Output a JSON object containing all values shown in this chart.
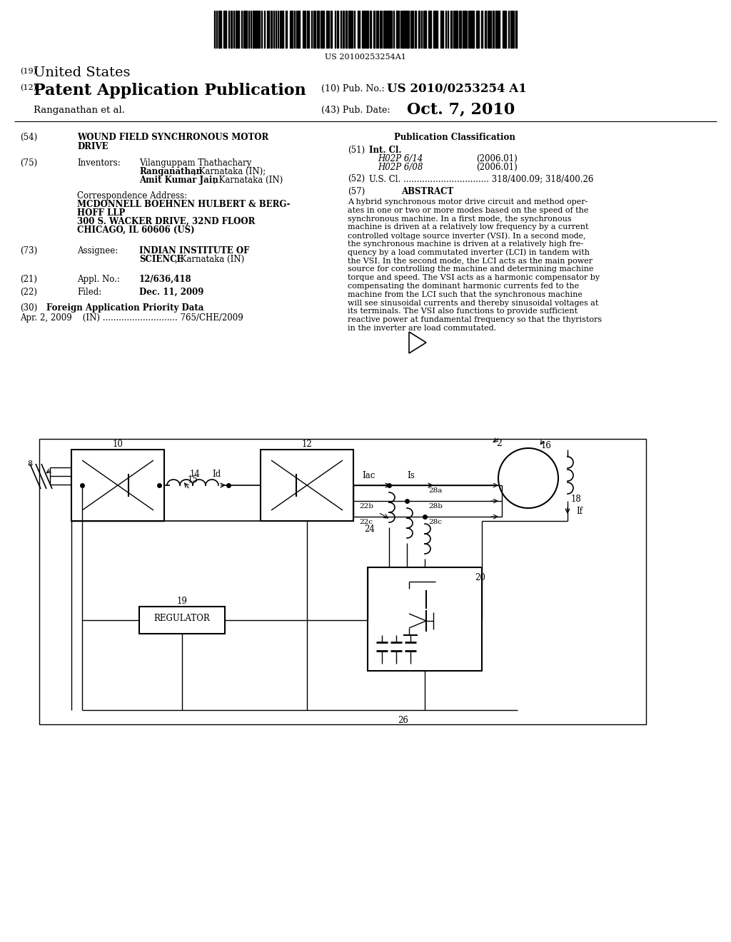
{
  "bg_color": "#ffffff",
  "barcode_text": "US 20100253254A1",
  "title19": "(19)",
  "title19b": "United States",
  "title12": "(12)",
  "title12b": "Patent Application Publication",
  "pub_no_label": "(10) Pub. No.:",
  "pub_no": "US 2010/0253254 A1",
  "inventors_label": "Ranganathan et al.",
  "pub_date_label": "(43) Pub. Date:",
  "pub_date": "Oct. 7, 2010",
  "field54_label": "(54)",
  "field75_label": "(75)",
  "field73_label": "(73)",
  "field21_label": "(21)",
  "field22_label": "(22)",
  "field30_label": "(30)",
  "pub_class_title": "Publication Classification",
  "field51_label": "(51)",
  "field51_title": "Int. Cl.",
  "field51_a": "H02P 6/14",
  "field51_a_date": "(2006.01)",
  "field51_b": "H02P 6/08",
  "field51_b_date": "(2006.01)",
  "field52_label": "(52)",
  "field52": "U.S. Cl. ................................ 318/400.09; 318/400.26",
  "field57_label": "(57)",
  "field57_title": "ABSTRACT",
  "abstract_lines": [
    "A hybrid synchronous motor drive circuit and method oper-",
    "ates in one or two or more modes based on the speed of the",
    "synchronous machine. In a first mode, the synchronous",
    "machine is driven at a relatively low frequency by a current",
    "controlled voltage source inverter (VSI). In a second mode,",
    "the synchronous machine is driven at a relatively high fre-",
    "quency by a load commutated inverter (LCI) in tandem with",
    "the VSI. In the second mode, the LCI acts as the main power",
    "source for controlling the machine and determining machine",
    "torque and speed. The VSI acts as a harmonic compensator by",
    "compensating the dominant harmonic currents fed to the",
    "machine from the LCI such that the synchronous machine",
    "will see sinusoidal currents and thereby sinusoidal voltages at",
    "its terminals. The VSI also functions to provide sufficient",
    "reactive power at fundamental frequency so that the thyristors",
    "in the inverter are load commutated."
  ]
}
